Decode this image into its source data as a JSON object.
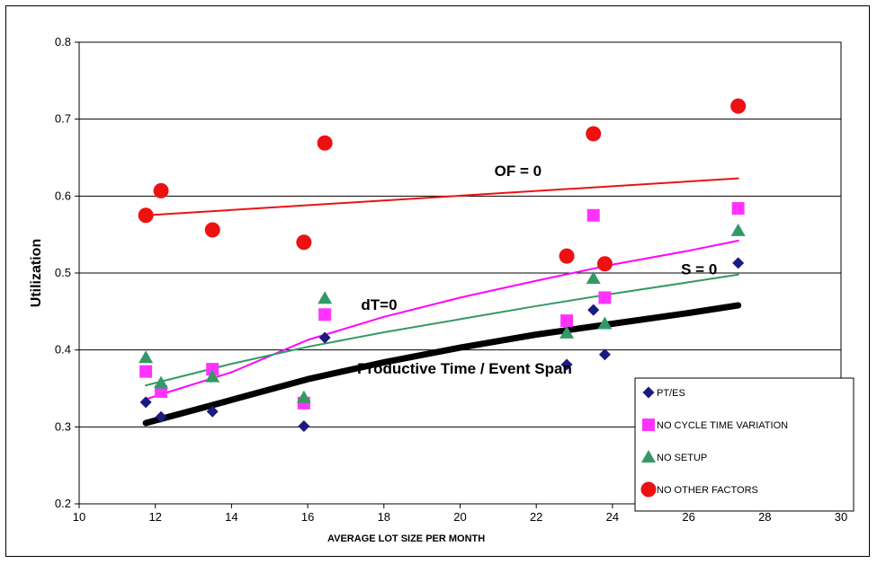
{
  "chart_data": {
    "type": "scatter",
    "title": "",
    "xlabel": "AVERAGE LOT SIZE PER MONTH",
    "ylabel": "Utilization",
    "xlim": [
      10,
      30
    ],
    "ylim": [
      0.2,
      0.8
    ],
    "xticks": [
      "10",
      "12",
      "14",
      "16",
      "18",
      "20",
      "22",
      "24",
      "26",
      "28",
      "30"
    ],
    "yticks": [
      "0.2",
      "0.3",
      "0.4",
      "0.5",
      "0.6",
      "0.7",
      "0.8"
    ],
    "grid": "horizontal",
    "legend_position": "bottom-right",
    "series": [
      {
        "name": "PT/ES",
        "marker": "diamond",
        "color": "#1a1a80",
        "points": [
          [
            11.75,
            0.332
          ],
          [
            12.15,
            0.313
          ],
          [
            13.5,
            0.32
          ],
          [
            15.9,
            0.301
          ],
          [
            16.45,
            0.416
          ],
          [
            22.8,
            0.381
          ],
          [
            23.5,
            0.452
          ],
          [
            23.8,
            0.394
          ],
          [
            27.3,
            0.513
          ]
        ]
      },
      {
        "name": "NO CYCLE TIME VARIATION",
        "marker": "square",
        "color": "#ff33ff",
        "points": [
          [
            11.75,
            0.372
          ],
          [
            12.15,
            0.346
          ],
          [
            13.5,
            0.375
          ],
          [
            15.9,
            0.331
          ],
          [
            16.45,
            0.446
          ],
          [
            22.8,
            0.438
          ],
          [
            23.5,
            0.575
          ],
          [
            23.8,
            0.468
          ],
          [
            27.3,
            0.584
          ]
        ]
      },
      {
        "name": "NO SETUP",
        "marker": "triangle",
        "color": "#339966",
        "points": [
          [
            11.75,
            0.39
          ],
          [
            12.15,
            0.357
          ],
          [
            13.5,
            0.365
          ],
          [
            15.9,
            0.338
          ],
          [
            16.45,
            0.467
          ],
          [
            22.8,
            0.422
          ],
          [
            23.5,
            0.493
          ],
          [
            23.8,
            0.434
          ],
          [
            27.3,
            0.555
          ]
        ]
      },
      {
        "name": "NO OTHER FACTORS",
        "marker": "circle",
        "color": "#ee1111",
        "points": [
          [
            11.75,
            0.575
          ],
          [
            12.15,
            0.607
          ],
          [
            13.5,
            0.556
          ],
          [
            15.9,
            0.54
          ],
          [
            16.45,
            0.669
          ],
          [
            22.8,
            0.522
          ],
          [
            23.5,
            0.681
          ],
          [
            23.8,
            0.512
          ],
          [
            27.3,
            0.717
          ]
        ]
      }
    ],
    "trendlines": [
      {
        "label": "OF = 0",
        "color": "#ee1111",
        "width": 2,
        "points": [
          [
            11.75,
            0.575
          ],
          [
            27.3,
            0.623
          ]
        ]
      },
      {
        "label": "dT=0",
        "color": "#ff00ff",
        "width": 2,
        "points": [
          [
            11.75,
            0.336
          ],
          [
            14,
            0.371
          ],
          [
            16,
            0.413
          ],
          [
            18,
            0.443
          ],
          [
            20,
            0.468
          ],
          [
            22,
            0.49
          ],
          [
            24,
            0.511
          ],
          [
            26,
            0.529
          ],
          [
            27.3,
            0.542
          ]
        ]
      },
      {
        "label": "",
        "color": "#339966",
        "width": 2,
        "points": [
          [
            11.75,
            0.354
          ],
          [
            14,
            0.382
          ],
          [
            16,
            0.404
          ],
          [
            18,
            0.423
          ],
          [
            20,
            0.44
          ],
          [
            22,
            0.457
          ],
          [
            24,
            0.473
          ],
          [
            26,
            0.488
          ],
          [
            27.3,
            0.498
          ]
        ]
      },
      {
        "label": "Productive Time / Event Span",
        "color": "#000000",
        "width": 7,
        "points": [
          [
            11.75,
            0.305
          ],
          [
            14,
            0.335
          ],
          [
            16,
            0.362
          ],
          [
            18,
            0.384
          ],
          [
            20,
            0.403
          ],
          [
            22,
            0.42
          ],
          [
            24,
            0.434
          ],
          [
            26,
            0.448
          ],
          [
            27.3,
            0.458
          ]
        ]
      }
    ],
    "annotations": [
      {
        "text": "OF = 0",
        "x": 20.9,
        "y": 0.626
      },
      {
        "text": "dT=0",
        "x": 17.4,
        "y": 0.452
      },
      {
        "text": "S = 0",
        "x": 25.8,
        "y": 0.498
      },
      {
        "text": "Productive Time / Event Span",
        "x": 17.3,
        "y": 0.369
      }
    ]
  }
}
